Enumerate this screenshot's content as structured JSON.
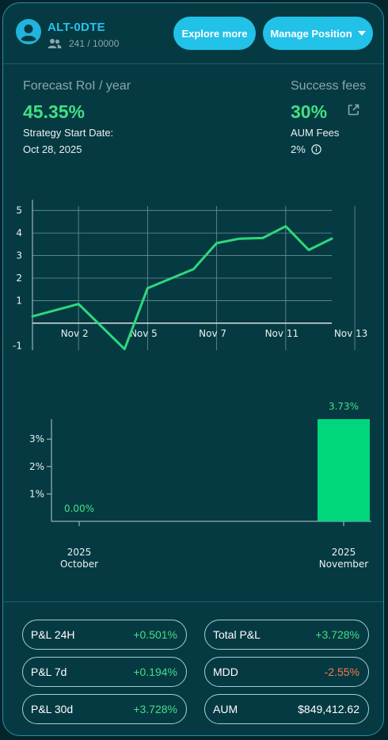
{
  "header": {
    "title": "ALT-0DTE",
    "followers": "241 / 10000",
    "explore_label": "Explore more",
    "manage_label": "Manage Position"
  },
  "stats": {
    "forecast_label": "Forecast RoI / year",
    "forecast_value": "45.35%",
    "start_label": "Strategy Start Date:",
    "start_date": "Oct 28, 2025",
    "success_label": "Success fees",
    "success_value": "30%",
    "aum_fees_label": "AUM Fees",
    "aum_fees_value": "2%"
  },
  "colors": {
    "accent": "#22c1e8",
    "positive": "#43df83",
    "negative": "#f47a4a",
    "bar": "#00d77c"
  },
  "icons": [
    "avatar-icon",
    "users-icon",
    "chevron-down-icon",
    "external-link-icon",
    "info-icon"
  ],
  "chart_data": [
    {
      "type": "line",
      "x_tick_labels": [
        "Nov 2",
        "Nov 5",
        "Nov 7",
        "Nov 11",
        "Nov 13"
      ],
      "x_tick_index": [
        2,
        5,
        8,
        11,
        14
      ],
      "y_ticks": [
        5,
        4,
        3,
        2,
        1,
        -1
      ],
      "ylim": [
        -1.2,
        5.2
      ],
      "values": [
        0.3,
        0.85,
        -1.15,
        1.55,
        2.4,
        3.55,
        3.75,
        3.78,
        4.3,
        3.25,
        3.75
      ],
      "x_index": [
        0,
        2,
        4,
        5,
        7,
        8,
        9,
        10,
        11,
        12,
        13
      ],
      "x_max": 13
    },
    {
      "type": "bar",
      "categories": [
        {
          "year": "2025",
          "month": "October"
        },
        {
          "year": "2025",
          "month": "November"
        }
      ],
      "values": [
        0.0,
        3.73
      ],
      "value_labels": [
        "0.00%",
        "3.73%"
      ],
      "y_tick_labels": [
        "3%",
        "2%",
        "1%"
      ],
      "y_ticks": [
        3,
        2,
        1
      ],
      "ylim": [
        0,
        3.73
      ]
    }
  ],
  "metrics": [
    {
      "label": "P&L 24H",
      "value": "+0.501%",
      "tone": "positive"
    },
    {
      "label": "Total P&L",
      "value": "+3.728%",
      "tone": "positive"
    },
    {
      "label": "P&L 7d",
      "value": "+0.194%",
      "tone": "positive"
    },
    {
      "label": "MDD",
      "value": "-2.55%",
      "tone": "negative"
    },
    {
      "label": "P&L 30d",
      "value": "+3.728%",
      "tone": "positive"
    },
    {
      "label": "AUM",
      "value": "$849,412.62",
      "tone": "neutral"
    }
  ]
}
